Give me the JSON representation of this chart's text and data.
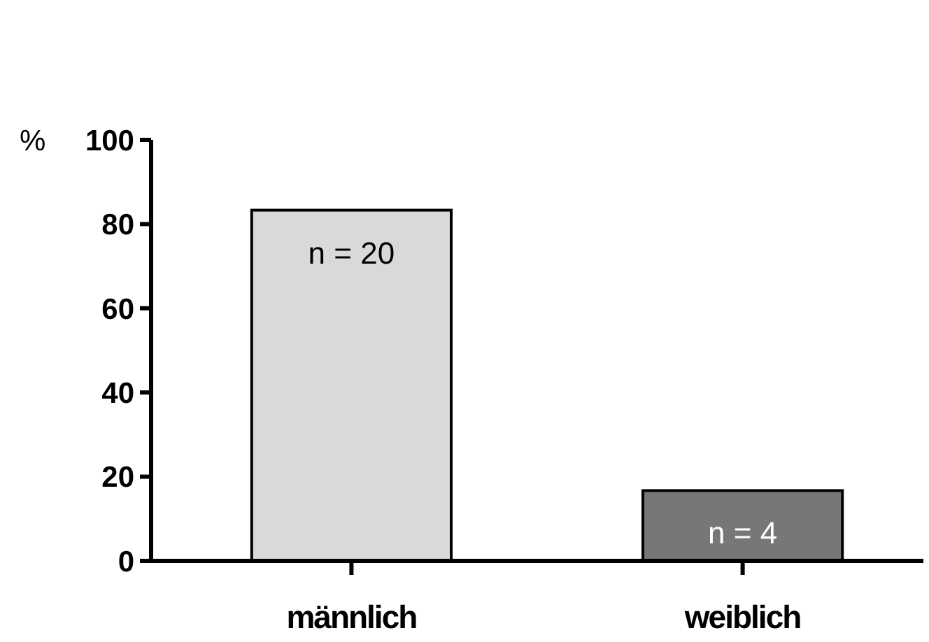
{
  "chart_data": {
    "type": "bar",
    "ylabel": "%",
    "categories": [
      "männlich",
      "weiblich"
    ],
    "values": [
      83.3,
      16.7
    ],
    "colors": [
      "#d9d9d9",
      "#777777"
    ],
    "annotations": [
      {
        "text": "n = 20",
        "x": "männlich",
        "y": 83.3
      },
      {
        "text": "n = 4",
        "x": "weiblich",
        "y": 16.7
      }
    ],
    "ylim": [
      0,
      100
    ],
    "yticks": [
      0,
      20,
      40,
      60,
      80,
      100
    ],
    "grid": false
  }
}
